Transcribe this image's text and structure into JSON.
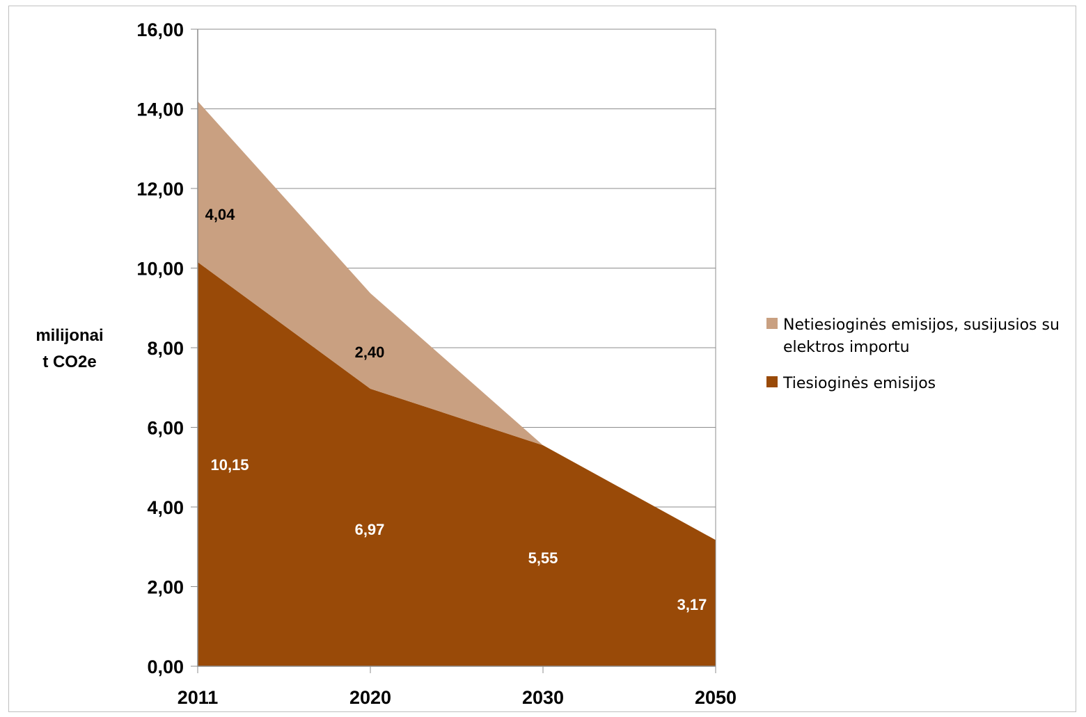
{
  "chart_data": {
    "type": "area",
    "stacked": true,
    "categories": [
      "2011",
      "2020",
      "2030",
      "2050"
    ],
    "ylabel_lines": [
      "milijonai",
      "t CO2e"
    ],
    "ylim": [
      0,
      16
    ],
    "yticks": [
      "0,00",
      "2,00",
      "4,00",
      "6,00",
      "8,00",
      "10,00",
      "12,00",
      "14,00",
      "16,00"
    ],
    "ytick_values": [
      0,
      2,
      4,
      6,
      8,
      10,
      12,
      14,
      16
    ],
    "grid": true,
    "legend_position": "right",
    "series": [
      {
        "name": "Tiesioginės emisijos",
        "values": [
          10.15,
          6.97,
          5.55,
          3.17
        ],
        "labels": [
          "10,15",
          "6,97",
          "5,55",
          "3,17"
        ],
        "color": "#994a08",
        "label_color": "#ffffff"
      },
      {
        "name": "Netiesioginės emisijos, susijusios su elektros importu",
        "legend_lines": [
          "Netiesioginės emisijos, susijusios su",
          "elektros importu"
        ],
        "values": [
          4.04,
          2.4,
          0,
          0
        ],
        "labels": [
          "4,04",
          "2,40"
        ],
        "color": "#c9a081",
        "label_color": "#000000"
      }
    ]
  }
}
